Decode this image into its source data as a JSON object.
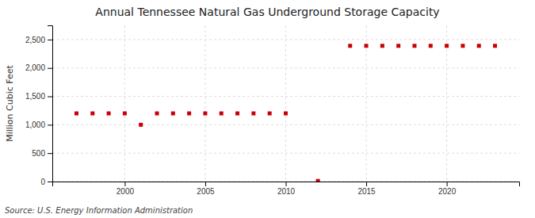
{
  "chart_data": {
    "type": "scatter",
    "title": "Annual Tennessee Natural Gas Underground Storage Capacity",
    "ylabel": "Million Cubic Feet",
    "source": "Source: U.S. Energy Information Administration",
    "color": "#cc0000",
    "marker": "square",
    "grid": true,
    "x": [
      1997,
      1998,
      1999,
      2000,
      2001,
      2002,
      2003,
      2004,
      2005,
      2006,
      2007,
      2008,
      2009,
      2010,
      2012,
      2014,
      2015,
      2016,
      2017,
      2018,
      2019,
      2020,
      2021,
      2022,
      2023
    ],
    "values": [
      1200,
      1200,
      1200,
      1200,
      1000,
      1200,
      1200,
      1200,
      1200,
      1200,
      1200,
      1200,
      1200,
      1200,
      10,
      2390,
      2390,
      2390,
      2390,
      2390,
      2390,
      2390,
      2390,
      2390,
      2390
    ],
    "xlim": [
      1995.5,
      2024.5
    ],
    "ylim": [
      0,
      2750
    ],
    "xticks": [
      2000,
      2005,
      2010,
      2015,
      2020
    ],
    "yticks": [
      0,
      500,
      {
        "value": 1000,
        "label": "1,000"
      },
      {
        "value": 1500,
        "label": "1,500"
      },
      {
        "value": 2000,
        "label": "2,000"
      },
      {
        "value": 2500,
        "label": "2,500"
      }
    ]
  }
}
